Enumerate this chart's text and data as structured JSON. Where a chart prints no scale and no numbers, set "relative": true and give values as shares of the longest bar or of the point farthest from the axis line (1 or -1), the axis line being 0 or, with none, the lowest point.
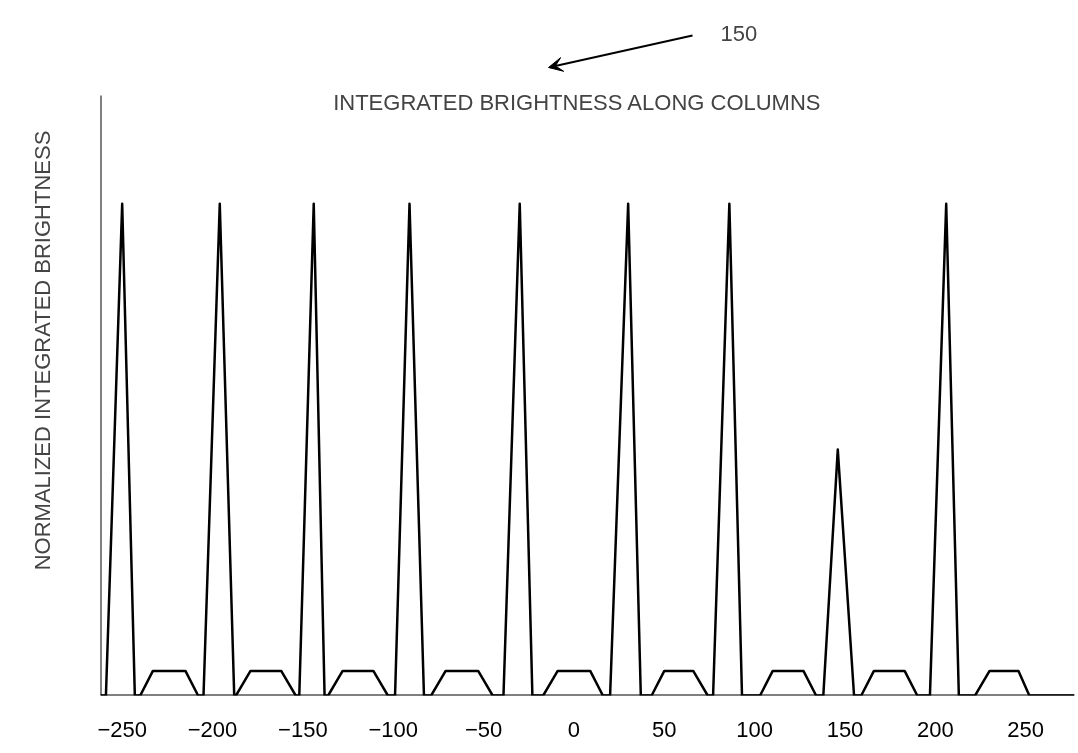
{
  "chart_data": {
    "type": "line",
    "title": "INTEGRATED BRIGHTNESS ALONG  COLUMNS",
    "ylabel": "NORMALIZED INTEGRATED BRIGHTNESS",
    "annotations": [
      "150"
    ],
    "relative": true,
    "xlim": [
      -262,
      277
    ],
    "xticks": [
      -250,
      -200,
      -150,
      -100,
      -50,
      0,
      50,
      100,
      150,
      200,
      250
    ],
    "tick_labels": "x",
    "grid": false,
    "marker": "none",
    "line_style": "solid",
    "series": [
      {
        "color": "#000000",
        "x": [
          -262,
          -259,
          -250,
          -243,
          -240,
          -233,
          -215,
          -208,
          -205,
          -196,
          -188,
          -187,
          -179,
          -162,
          -154,
          -152,
          -144,
          -138,
          -136,
          -128,
          -111,
          -103,
          -99,
          -91,
          -83,
          -79,
          -71,
          -53,
          -45,
          -39,
          -30,
          -23,
          -17,
          -9,
          9,
          16,
          20,
          30,
          37,
          43,
          50,
          66,
          74,
          77,
          86,
          93,
          103,
          110,
          127,
          134,
          138,
          146,
          155,
          159,
          166,
          183,
          190,
          197,
          206,
          213,
          222,
          230,
          246,
          252,
          277
        ],
        "values": [
          0,
          0,
          1,
          0,
          0,
          0.05,
          0.05,
          0,
          0,
          1,
          0,
          0,
          0.05,
          0.05,
          0,
          0,
          1,
          0,
          0,
          0.05,
          0.05,
          0,
          0,
          1,
          0,
          0,
          0.05,
          0.05,
          0,
          0,
          1,
          0,
          0,
          0.05,
          0.05,
          0,
          0,
          1,
          0,
          0,
          0.05,
          0.05,
          0,
          0,
          1,
          0,
          0,
          0.05,
          0.05,
          0,
          0,
          0.5,
          0,
          0,
          0.05,
          0.05,
          0,
          0,
          1,
          0,
          0,
          0.05,
          0.05,
          0,
          0
        ]
      }
    ]
  }
}
